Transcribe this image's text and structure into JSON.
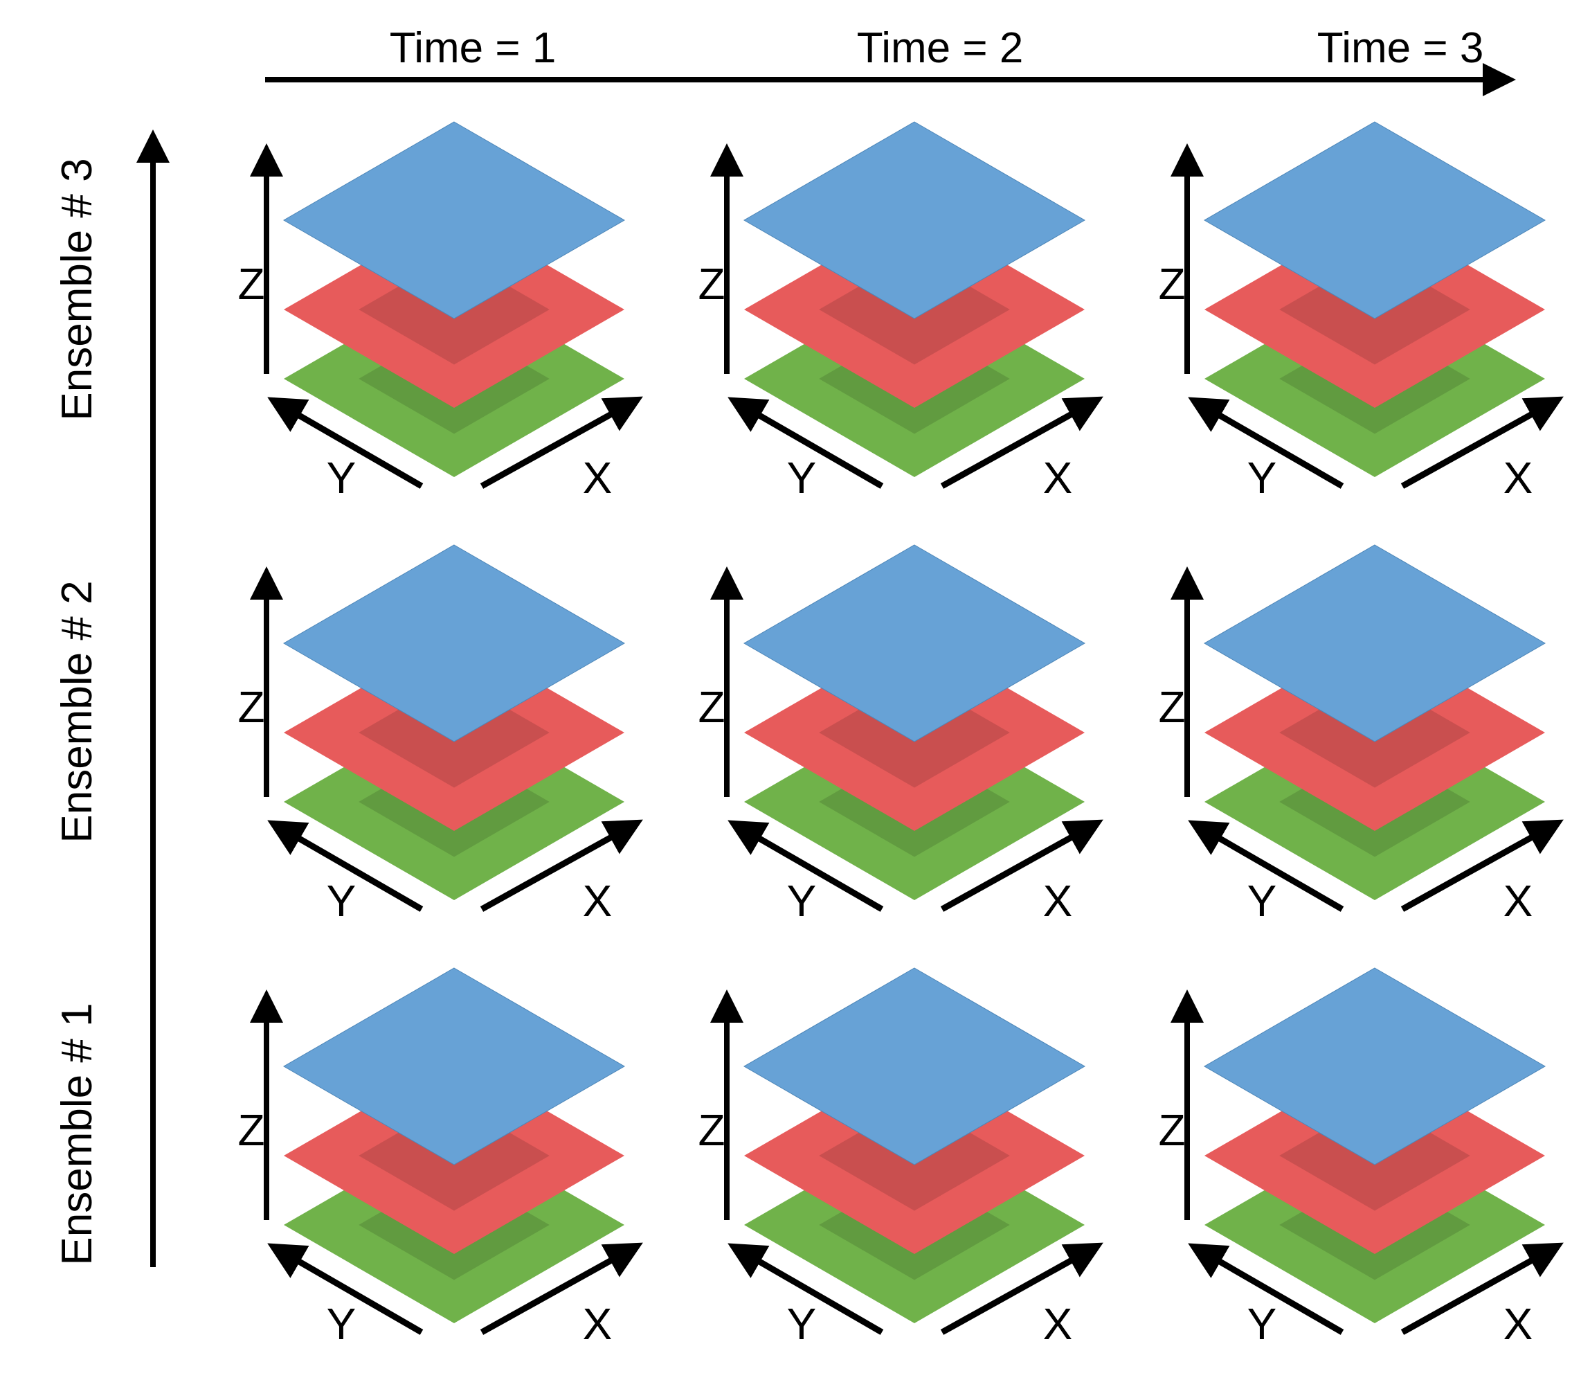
{
  "time_axis": {
    "labels": [
      "Time = 1",
      "Time = 2",
      "Time = 3"
    ]
  },
  "ensemble_axis": {
    "labels_top_to_bottom": [
      "Ensemble # 3",
      "Ensemble # 2",
      "Ensemble # 1"
    ]
  },
  "panel_axes": {
    "z_label": "Z",
    "y_label": "Y",
    "x_label": "X"
  },
  "layers": [
    {
      "name": "bottom",
      "color": "#70b24a"
    },
    {
      "name": "middle",
      "color": "#e75b5b"
    },
    {
      "name": "top",
      "color": "#67a2d6"
    }
  ],
  "shadow_color": "rgba(0,0,0,0.13)",
  "panels": [
    {
      "ensemble": "Ensemble # 3",
      "time": "Time = 1"
    },
    {
      "ensemble": "Ensemble # 3",
      "time": "Time = 2"
    },
    {
      "ensemble": "Ensemble # 3",
      "time": "Time = 3"
    },
    {
      "ensemble": "Ensemble # 2",
      "time": "Time = 1"
    },
    {
      "ensemble": "Ensemble # 2",
      "time": "Time = 2"
    },
    {
      "ensemble": "Ensemble # 2",
      "time": "Time = 3"
    },
    {
      "ensemble": "Ensemble # 1",
      "time": "Time = 1"
    },
    {
      "ensemble": "Ensemble # 1",
      "time": "Time = 2"
    },
    {
      "ensemble": "Ensemble # 1",
      "time": "Time = 3"
    }
  ]
}
